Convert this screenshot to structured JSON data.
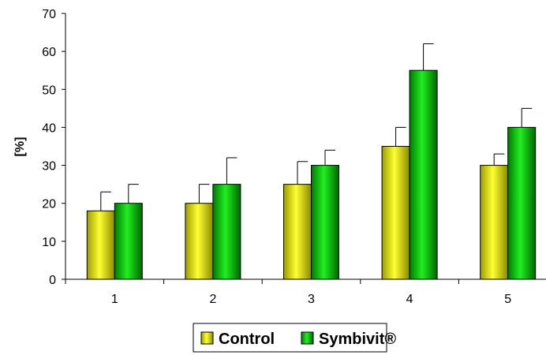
{
  "chart_data": {
    "type": "bar",
    "title": "",
    "xlabel": "",
    "ylabel": "[%]",
    "ylim": [
      0,
      70
    ],
    "y_ticks": [
      0,
      10,
      20,
      30,
      40,
      50,
      60,
      70
    ],
    "categories": [
      "1",
      "2",
      "3",
      "4",
      "5"
    ],
    "series": [
      {
        "name": "Control",
        "values": [
          18,
          20,
          25,
          35,
          30
        ],
        "errors": [
          5,
          5,
          6,
          5,
          3
        ],
        "color": "#ffff00"
      },
      {
        "name": "Symbivit®",
        "values": [
          20,
          25,
          30,
          55,
          40
        ],
        "errors": [
          5,
          7,
          4,
          7,
          5
        ],
        "color": "#00cc00"
      }
    ],
    "grid": false,
    "legend_position": "bottom",
    "error_bars": "upper"
  }
}
